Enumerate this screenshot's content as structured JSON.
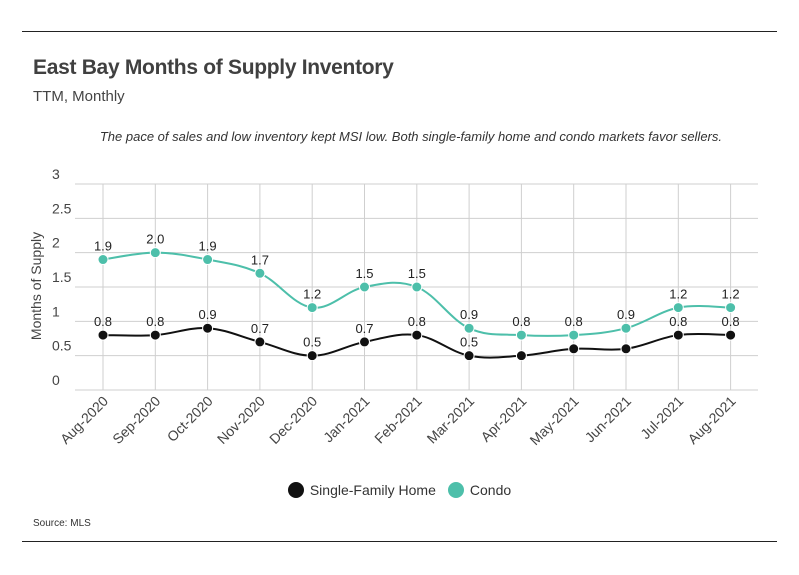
{
  "header": {
    "title": "East Bay Months of Supply Inventory",
    "subtitle": "TTM, Monthly"
  },
  "annotation": "The pace of sales and low inventory kept MSI low. Both single-family home and condo markets favor sellers.",
  "source": "Source:  MLS",
  "chart_data": {
    "type": "line",
    "title": "East Bay Months of Supply Inventory",
    "subtitle": "TTM, Monthly",
    "xlabel": "",
    "ylabel": "Months of Supply",
    "ylim": [
      0,
      3
    ],
    "yticks": [
      "0",
      "0.5",
      "1",
      "1.5",
      "2",
      "2.5",
      "3"
    ],
    "grid": true,
    "legend_position": "bottom",
    "categories": [
      "Aug-2020",
      "Sep-2020",
      "Oct-2020",
      "Nov-2020",
      "Dec-2020",
      "Jan-2021",
      "Feb-2021",
      "Mar-2021",
      "Apr-2021",
      "May-2021",
      "Jun-2021",
      "Jul-2021",
      "Aug-2021"
    ],
    "series": [
      {
        "name": "Single-Family Home",
        "color": "#111111",
        "values": [
          0.8,
          0.8,
          0.9,
          0.7,
          0.5,
          0.7,
          0.8,
          0.5,
          0.5,
          0.6,
          0.6,
          0.8,
          0.8
        ],
        "labels": [
          "0.8",
          "0.8",
          "0.9",
          "0.7",
          "0.5",
          "0.7",
          "0.8",
          "0.5",
          "",
          "",
          "",
          "0.8",
          "0.8"
        ]
      },
      {
        "name": "Condo",
        "color": "#4dbfaa",
        "values": [
          1.9,
          2.0,
          1.9,
          1.7,
          1.2,
          1.5,
          1.5,
          0.9,
          0.8,
          0.8,
          0.9,
          1.2,
          1.2
        ],
        "labels": [
          "1.9",
          "2.0",
          "1.9",
          "1.7",
          "1.2",
          "1.5",
          "1.5",
          "0.9",
          "0.8",
          "0.8",
          "0.9",
          "1.2",
          "1.2"
        ]
      }
    ]
  }
}
